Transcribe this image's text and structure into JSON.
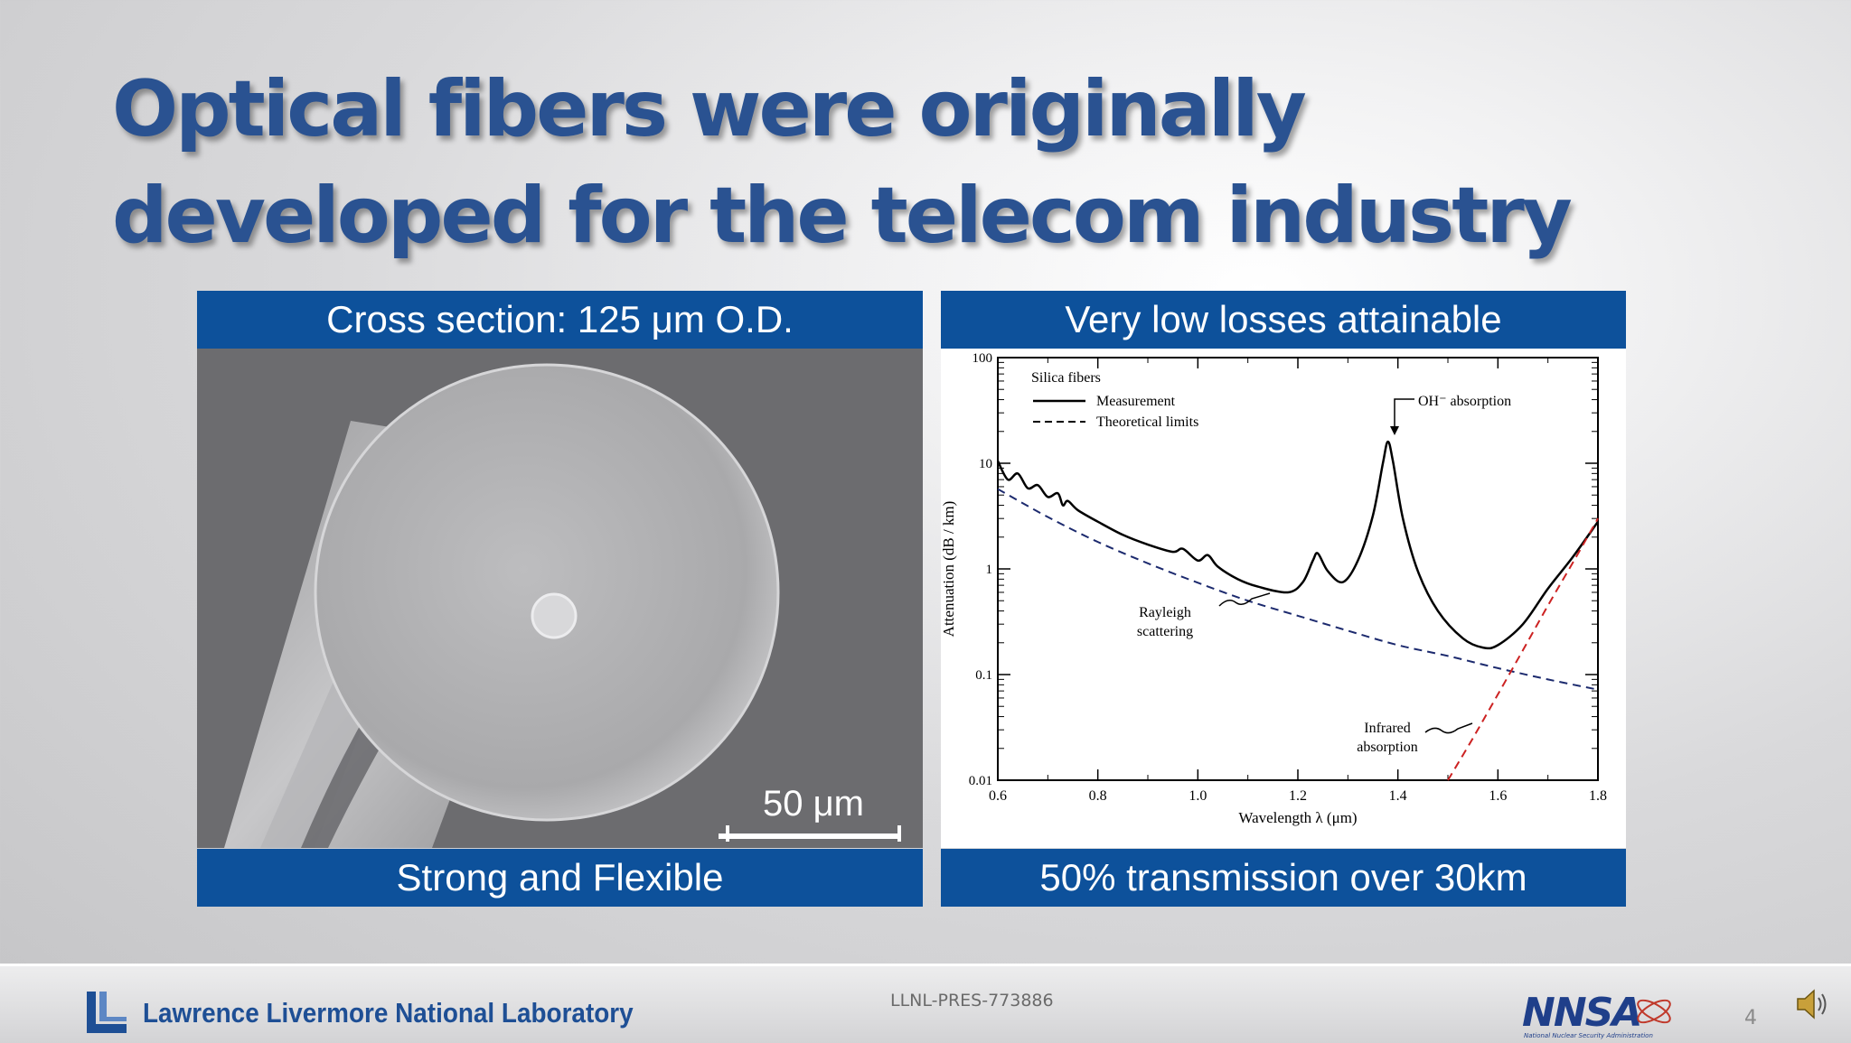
{
  "slide": {
    "title": "Optical fibers were originally developed for the telecom industry",
    "left_panel": {
      "header": "Cross section: 125 μm O.D.",
      "scale_bar_label": "50 μm",
      "footer": "Strong and Flexible"
    },
    "right_panel": {
      "header": "Very low losses attainable",
      "footer": "50% transmission over 30km"
    },
    "page_number": "4"
  },
  "footer": {
    "lab_name": "Lawrence Livermore National Laboratory",
    "document_id": "LLNL-PRES-773886",
    "nnsa_logo_text": "NNSA",
    "nnsa_caption": "National Nuclear Security Administration"
  },
  "colors": {
    "title_blue": "#2a5291",
    "panel_blue": "#0d519b",
    "lab_blue": "#1e4f95",
    "measurement_line": "#000000",
    "rayleigh_line": "#1c2a6e",
    "infrared_line": "#cc2222"
  },
  "chart_data": {
    "type": "line",
    "title": "",
    "xlabel": "Wavelength  λ  (μm)",
    "ylabel": "Attenuation  (dB / km)",
    "xlim": [
      0.6,
      1.8
    ],
    "ylim": [
      0.01,
      100
    ],
    "yscale": "log",
    "x_ticks": [
      "0.6",
      "0.8",
      "1.0",
      "1.2",
      "1.4",
      "1.6",
      "1.8"
    ],
    "y_ticks": [
      "0.01",
      "0.1",
      "1",
      "10",
      "100"
    ],
    "legend": {
      "heading": "Silica fibers",
      "entries": [
        "Measurement",
        "Theoretical limits"
      ],
      "position": "top-left"
    },
    "series": [
      {
        "name": "Measurement",
        "style": "solid",
        "x": [
          0.6,
          0.62,
          0.64,
          0.66,
          0.68,
          0.7,
          0.72,
          0.73,
          0.74,
          0.76,
          0.8,
          0.85,
          0.9,
          0.95,
          0.97,
          1.0,
          1.02,
          1.04,
          1.08,
          1.12,
          1.18,
          1.21,
          1.23,
          1.24,
          1.26,
          1.29,
          1.32,
          1.35,
          1.37,
          1.38,
          1.39,
          1.41,
          1.44,
          1.48,
          1.53,
          1.57,
          1.6,
          1.65,
          1.7,
          1.75,
          1.8
        ],
        "y": [
          10.5,
          7.0,
          8.0,
          5.8,
          6.2,
          4.8,
          5.2,
          4.0,
          4.4,
          3.6,
          2.8,
          2.1,
          1.7,
          1.45,
          1.55,
          1.2,
          1.35,
          1.05,
          0.8,
          0.68,
          0.6,
          0.75,
          1.2,
          1.4,
          0.95,
          0.75,
          1.2,
          3.2,
          10.0,
          16.0,
          10.5,
          3.0,
          0.95,
          0.4,
          0.22,
          0.18,
          0.19,
          0.3,
          0.65,
          1.3,
          2.8
        ]
      },
      {
        "name": "Rayleigh scattering",
        "style": "dashed",
        "x": [
          0.6,
          0.7,
          0.8,
          0.9,
          1.0,
          1.1,
          1.2,
          1.3,
          1.4,
          1.5,
          1.6,
          1.7,
          1.8
        ],
        "y": [
          5.7,
          3.1,
          1.8,
          1.13,
          0.74,
          0.5,
          0.36,
          0.26,
          0.19,
          0.15,
          0.115,
          0.09,
          0.072
        ]
      },
      {
        "name": "Infrared absorption",
        "style": "dashed",
        "x": [
          1.5,
          1.55,
          1.6,
          1.65,
          1.7,
          1.75,
          1.8
        ],
        "y": [
          0.01,
          0.025,
          0.065,
          0.17,
          0.45,
          1.15,
          3.0
        ]
      }
    ],
    "annotations": [
      {
        "text": "Rayleigh\nscattering",
        "x": 1.2,
        "y": 0.58
      },
      {
        "text": "Infrared\nabsorption",
        "x": 1.54,
        "y": 0.025
      },
      {
        "text": "OH⁻  absorption",
        "x": 1.39,
        "y": 16
      }
    ]
  }
}
